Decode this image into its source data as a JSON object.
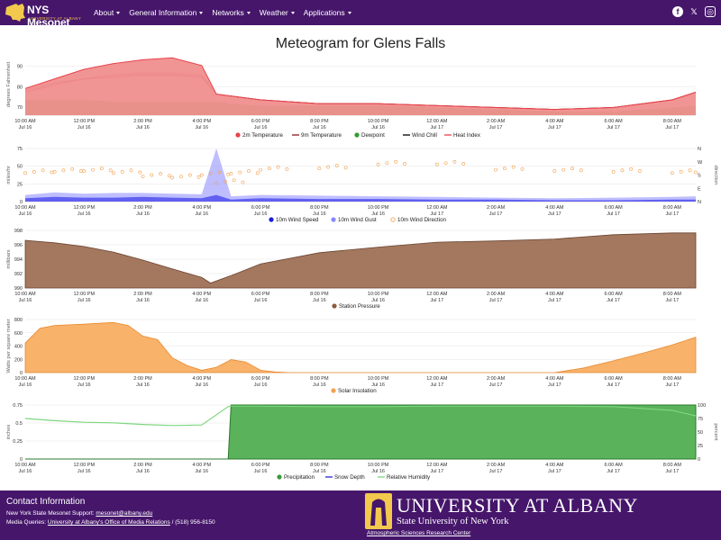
{
  "brand": {
    "name": "NYS Mesonet",
    "sub": "UNIVERSITY AT ALBANY"
  },
  "nav": {
    "items": [
      {
        "label": "About",
        "has_dropdown": true
      },
      {
        "label": "General Information",
        "has_dropdown": true
      },
      {
        "label": "Networks",
        "has_dropdown": true
      },
      {
        "label": "Weather",
        "has_dropdown": true
      },
      {
        "label": "Applications",
        "has_dropdown": true
      }
    ]
  },
  "social": {
    "facebook": "f",
    "x": "𝕏",
    "instagram": "◎"
  },
  "page": {
    "title": "Meteogram for Glens Falls"
  },
  "x_ticks": [
    {
      "time": "10:00 AM",
      "day": "Jul 16"
    },
    {
      "time": "12:00 PM",
      "day": "Jul 16"
    },
    {
      "time": "2:00 PM",
      "day": "Jul 16"
    },
    {
      "time": "4:00 PM",
      "day": "Jul 16"
    },
    {
      "time": "6:00 PM",
      "day": "Jul 16"
    },
    {
      "time": "8:00 PM",
      "day": "Jul 16"
    },
    {
      "time": "10:00 PM",
      "day": "Jul 16"
    },
    {
      "time": "12:00 AM",
      "day": "Jul 17"
    },
    {
      "time": "2:00 AM",
      "day": "Jul 17"
    },
    {
      "time": "4:00 AM",
      "day": "Jul 17"
    },
    {
      "time": "6:00 AM",
      "day": "Jul 17"
    },
    {
      "time": "8:00 AM",
      "day": "Jul 17"
    }
  ],
  "chart_data": [
    {
      "type": "area",
      "ylabel": "degrees Fahrenheit",
      "ylim": [
        65,
        97
      ],
      "yticks": [
        "90",
        "80",
        "70"
      ],
      "x_hours": [
        0,
        1,
        2,
        3,
        4,
        5,
        6,
        6.5,
        7,
        8,
        10,
        12,
        14,
        16,
        18,
        20,
        22,
        22.8
      ],
      "series": [
        {
          "name": "2m Temperature",
          "color": "#e8434b",
          "values": [
            78,
            82,
            84,
            86,
            87,
            87,
            86,
            76,
            75,
            73,
            71,
            71,
            70,
            69,
            68,
            69,
            73,
            77
          ]
        },
        {
          "name": "9m Temperature",
          "color": "#8b1a1a",
          "values": [
            77,
            81,
            84,
            85,
            86,
            86,
            85,
            76,
            75,
            73,
            71,
            71,
            70,
            69,
            68,
            69,
            73,
            77
          ]
        },
        {
          "name": "Dewpoint",
          "color": "#2f9e2f",
          "values": [
            73,
            73,
            73,
            72,
            72,
            72,
            72,
            72,
            71,
            70,
            70,
            70,
            69,
            68,
            67,
            67,
            69,
            70
          ]
        },
        {
          "name": "Wind Chill",
          "color": "#000000",
          "values": [
            null
          ]
        },
        {
          "name": "Heat Index",
          "color": "#e8434b",
          "values": [
            79,
            84,
            89,
            92,
            94,
            95,
            91,
            76,
            75,
            73,
            71,
            71,
            70,
            69,
            68,
            69,
            73,
            77
          ]
        }
      ]
    },
    {
      "type": "line",
      "ylabel": "miles/hr",
      "y2label": "direction",
      "ylim": [
        0,
        80
      ],
      "yticks": [
        "75",
        "50",
        "25",
        "0"
      ],
      "y2ticks": [
        "N",
        "W",
        "S",
        "E",
        "N"
      ],
      "x_hours": [
        0,
        1,
        2,
        3,
        4,
        5,
        6,
        6.5,
        7,
        8,
        10,
        12,
        14,
        16,
        18,
        20,
        22,
        22.8
      ],
      "series": [
        {
          "name": "10m Wind Speed",
          "color": "#1a1adb",
          "values": [
            5,
            7,
            6,
            6,
            7,
            6,
            5,
            10,
            3,
            5,
            4,
            4,
            3,
            3,
            2,
            2,
            3,
            3
          ]
        },
        {
          "name": "10m Wind Gust",
          "color": "#8888ff",
          "values": [
            10,
            14,
            12,
            13,
            13,
            12,
            11,
            80,
            8,
            10,
            9,
            8,
            7,
            6,
            5,
            6,
            7,
            8
          ]
        },
        {
          "name": "10m Wind Direction",
          "color": "#f0a050",
          "values": [
            45,
            47,
            48,
            45,
            40,
            38,
            42,
            30,
            44,
            50,
            52,
            58,
            58,
            50,
            48,
            47,
            45,
            46
          ]
        }
      ]
    },
    {
      "type": "area",
      "ylabel": "millibars",
      "ylim": [
        989.5,
        998.8
      ],
      "yticks": [
        "998",
        "996",
        "994",
        "992",
        "990"
      ],
      "x_hours": [
        0,
        1,
        2,
        3,
        4,
        5,
        6,
        6.3,
        7,
        8,
        10,
        12,
        14,
        16,
        18,
        20,
        22,
        22.8
      ],
      "series": [
        {
          "name": "Station Pressure",
          "color": "#8b5a3c",
          "values": [
            997.2,
            996.8,
            996.2,
            995.3,
            994.0,
            992.6,
            991.2,
            990.3,
            991.5,
            993.4,
            995.2,
            996.1,
            996.9,
            997.1,
            997.4,
            998.1,
            998.4,
            998.4
          ]
        }
      ]
    },
    {
      "type": "area",
      "ylabel": "Watts per square meter",
      "ylim": [
        0,
        900
      ],
      "yticks": [
        "800",
        "600",
        "400",
        "200",
        "0"
      ],
      "x_hours": [
        0,
        0.5,
        1,
        2,
        3,
        3.5,
        4,
        4.5,
        5,
        5.5,
        6,
        6.5,
        7,
        7.5,
        8,
        8.5,
        9,
        12,
        18,
        19,
        20,
        21,
        22,
        22.8
      ],
      "series": [
        {
          "name": "Solar Insolation",
          "color": "#f5a04e",
          "values": [
            500,
            750,
            800,
            820,
            850,
            800,
            620,
            560,
            250,
            120,
            40,
            90,
            220,
            180,
            40,
            10,
            0,
            0,
            0,
            80,
            200,
            330,
            470,
            600
          ]
        }
      ]
    },
    {
      "type": "area",
      "ylabel": "inches",
      "y2label": "percent",
      "ylim": [
        0,
        1.0
      ],
      "yticks": [
        "0.75",
        "0.5",
        "0.25",
        "0"
      ],
      "y2ticks": [
        "100",
        "75",
        "50",
        "25",
        "0"
      ],
      "x_hours": [
        0,
        1,
        2,
        3,
        4,
        5,
        6,
        6.9,
        7,
        8,
        10,
        12,
        14,
        16,
        18,
        20,
        22,
        22.8
      ],
      "series": [
        {
          "name": "Precipitation",
          "color": "#3a9a3a",
          "values": [
            0,
            0,
            0,
            0,
            0,
            0,
            0,
            0,
            1.0,
            1.0,
            1.0,
            1.0,
            1.0,
            1.0,
            1.0,
            1.0,
            1.0,
            1.0
          ]
        },
        {
          "name": "Snow Depth",
          "color": "#2a2ad0",
          "values": [
            0,
            0,
            0,
            0,
            0,
            0,
            0,
            0,
            0,
            0,
            0,
            0,
            0,
            0,
            0,
            0,
            0,
            0
          ]
        },
        {
          "name": "Relative Humidity",
          "color": "#7ed67e",
          "values": [
            75,
            71,
            68,
            67,
            64,
            62,
            63,
            97,
            98,
            98,
            97,
            97,
            98,
            98,
            98,
            97,
            90,
            80
          ]
        }
      ]
    }
  ],
  "footer": {
    "title": "Contact Information",
    "support_label": "New York State Mesonet Support:",
    "support_email": "mesonet@albany.edu",
    "media_label": "Media Queries:",
    "media_link": "University at Albany's Office of Media Relations",
    "media_phone": " / (518) 956-8150",
    "ua_name": "UNIVERSITY AT ALBANY",
    "ua_sub": "State University of New York",
    "asrc": "Atmospheric Sciences Research Center"
  }
}
